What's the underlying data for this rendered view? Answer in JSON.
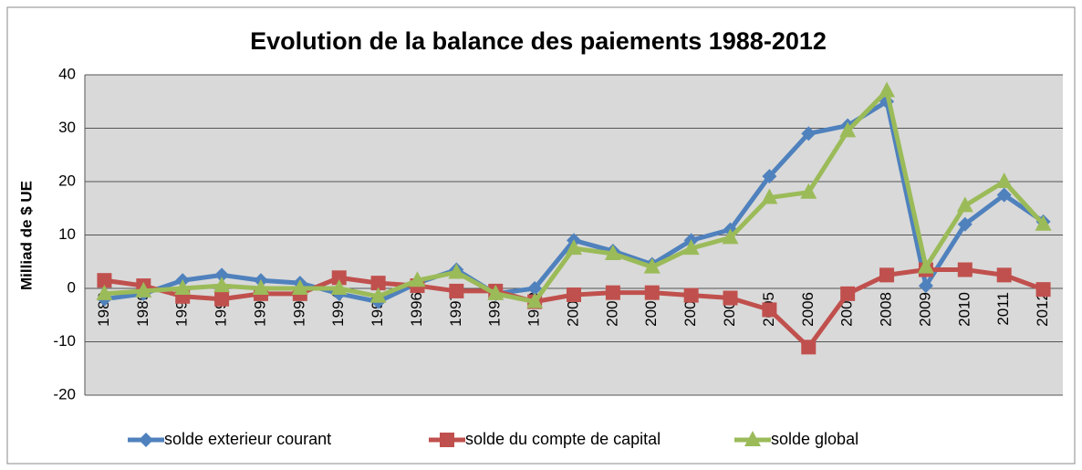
{
  "chart_data": {
    "type": "line",
    "title": "Evolution de la balance des paiements 1988-2012",
    "y_label": "Milliad de $ UE",
    "categories": [
      "1988",
      "1989",
      "1990",
      "1991",
      "1992",
      "1993",
      "1994",
      "1995",
      "1996",
      "1997",
      "1998",
      "1999",
      "2000",
      "2001",
      "2002",
      "2003",
      "2004",
      "2005",
      "2006",
      "2007",
      "2008",
      "2009",
      "2010",
      "2011",
      "2012"
    ],
    "series": [
      {
        "name": "solde exterieur courant",
        "color": "#4f81bd",
        "marker": "diamond",
        "values": [
          -2,
          -1,
          1.5,
          2.5,
          1.5,
          1,
          -1,
          -2.5,
          1,
          3.5,
          -1,
          0,
          9,
          7,
          4.5,
          9,
          11,
          21,
          29,
          30.5,
          35,
          0.5,
          12,
          17.5,
          12.5
        ]
      },
      {
        "name": "solde du compte de capital",
        "color": "#c0504d",
        "marker": "square",
        "values": [
          1.5,
          0.5,
          -1.5,
          -2,
          -1,
          -1,
          2,
          1,
          0.5,
          -0.5,
          -0.5,
          -2.5,
          -1.2,
          -0.8,
          -0.8,
          -1.3,
          -1.8,
          -4,
          -11,
          -1,
          2.5,
          3.5,
          3.5,
          2.5,
          -0.2
        ]
      },
      {
        "name": "solde global",
        "color": "#9bbb59",
        "marker": "triangle",
        "values": [
          -1,
          -0.5,
          0,
          0.5,
          0,
          0,
          0,
          -1.5,
          1.5,
          3,
          -1,
          -2.5,
          7.5,
          6.5,
          4,
          7.5,
          9.5,
          17,
          18,
          29.5,
          37,
          4,
          15.5,
          20,
          12
        ]
      }
    ],
    "ylim": [
      -20,
      40
    ],
    "yticks": [
      -20,
      -10,
      0,
      10,
      20,
      30,
      40
    ],
    "grid": true,
    "legend": "bottom"
  }
}
